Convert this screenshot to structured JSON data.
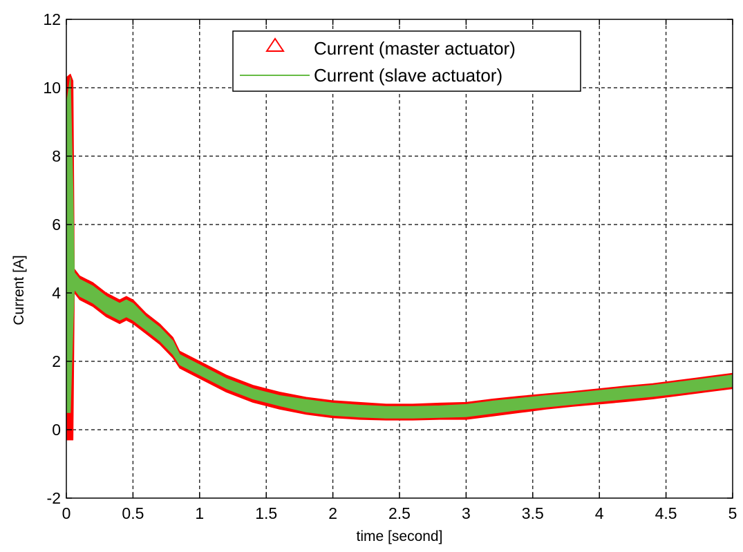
{
  "chart_data": {
    "type": "line",
    "title": "",
    "xlabel": "time [second]",
    "ylabel": "Current [A]",
    "xlim": [
      0,
      5
    ],
    "ylim": [
      -2,
      12
    ],
    "xticks": [
      0,
      0.5,
      1,
      1.5,
      2,
      2.5,
      3,
      3.5,
      4,
      4.5,
      5
    ],
    "xtick_labels": [
      "0",
      "0.5",
      "1",
      "1.5",
      "2",
      "2.5",
      "3",
      "3.5",
      "4",
      "4.5",
      "5"
    ],
    "yticks": [
      -2,
      0,
      2,
      4,
      6,
      8,
      10,
      12
    ],
    "ytick_labels": [
      "-2",
      "0",
      "2",
      "4",
      "6",
      "8",
      "10",
      "12"
    ],
    "grid": true,
    "legend_position": "top-center",
    "series": [
      {
        "name": "Current (master actuator)",
        "color": "#ff0000",
        "marker": "triangle",
        "x": [
          0,
          0.03,
          0.05,
          0.06,
          0.1,
          0.2,
          0.3,
          0.4,
          0.45,
          0.5,
          0.6,
          0.7,
          0.8,
          0.85,
          0.9,
          1.0,
          1.2,
          1.4,
          1.6,
          1.8,
          2.0,
          2.2,
          2.4,
          2.6,
          2.8,
          3.0,
          3.2,
          3.4,
          3.6,
          3.8,
          4.0,
          4.2,
          4.4,
          4.6,
          4.8,
          5.0
        ],
        "upper": [
          10.3,
          10.4,
          10.2,
          4.7,
          4.5,
          4.3,
          4.0,
          3.8,
          3.9,
          3.8,
          3.4,
          3.1,
          2.7,
          2.3,
          2.2,
          2.0,
          1.6,
          1.3,
          1.1,
          0.95,
          0.85,
          0.8,
          0.75,
          0.75,
          0.78,
          0.8,
          0.9,
          0.98,
          1.05,
          1.12,
          1.2,
          1.28,
          1.35,
          1.45,
          1.55,
          1.65
        ],
        "lower": [
          -0.3,
          -0.3,
          -0.3,
          4.0,
          3.8,
          3.6,
          3.3,
          3.1,
          3.2,
          3.1,
          2.8,
          2.5,
          2.1,
          1.8,
          1.7,
          1.5,
          1.1,
          0.8,
          0.6,
          0.45,
          0.35,
          0.3,
          0.28,
          0.28,
          0.3,
          0.3,
          0.4,
          0.5,
          0.6,
          0.68,
          0.75,
          0.82,
          0.9,
          1.0,
          1.1,
          1.2
        ]
      },
      {
        "name": "Current (slave actuator)",
        "color": "#66bb44",
        "marker": "line",
        "x": [
          0,
          0.03,
          0.05,
          0.06,
          0.1,
          0.2,
          0.3,
          0.4,
          0.45,
          0.5,
          0.6,
          0.7,
          0.8,
          0.85,
          0.9,
          1.0,
          1.2,
          1.4,
          1.6,
          1.8,
          2.0,
          2.2,
          2.4,
          2.6,
          2.8,
          3.0,
          3.2,
          3.4,
          3.6,
          3.8,
          4.0,
          4.2,
          4.4,
          4.6,
          4.8,
          5.0
        ],
        "upper": [
          9.5,
          10.3,
          7.0,
          4.6,
          4.4,
          4.2,
          3.9,
          3.7,
          3.8,
          3.7,
          3.3,
          3.0,
          2.6,
          2.2,
          2.1,
          1.9,
          1.5,
          1.2,
          1.0,
          0.88,
          0.78,
          0.72,
          0.68,
          0.68,
          0.7,
          0.74,
          0.84,
          0.92,
          1.0,
          1.07,
          1.15,
          1.23,
          1.3,
          1.4,
          1.5,
          1.6
        ],
        "lower": [
          0.5,
          0.5,
          3.0,
          4.1,
          3.9,
          3.7,
          3.4,
          3.2,
          3.3,
          3.2,
          2.9,
          2.6,
          2.2,
          1.9,
          1.8,
          1.6,
          1.2,
          0.9,
          0.7,
          0.52,
          0.42,
          0.37,
          0.34,
          0.34,
          0.36,
          0.38,
          0.48,
          0.58,
          0.66,
          0.74,
          0.82,
          0.9,
          0.97,
          1.06,
          1.16,
          1.26
        ]
      }
    ]
  }
}
